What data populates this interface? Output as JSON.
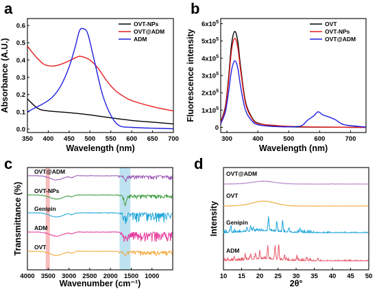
{
  "panels": {
    "a": "a",
    "b": "b",
    "c": "c",
    "d": "d"
  },
  "chart_data": [
    {
      "id": "a",
      "type": "line",
      "xlabel": "Wavelength (nm)",
      "ylabel": "Absorbance (A.U.)",
      "xlim": [
        350,
        700
      ],
      "ylim": [
        -0.02,
        0.64
      ],
      "xticks": [
        "350",
        "400",
        "450",
        "500",
        "550",
        "600",
        "650",
        "700"
      ],
      "yticks": [
        "0.0",
        "0.1",
        "0.2",
        "0.3",
        "0.4",
        "0.5",
        "0.6"
      ],
      "legend_position": "top-right",
      "colors": {
        "OVT-NPs": "#000000",
        "OVT@ADM": "#e41a1c",
        "ADM": "#1f1fe0"
      },
      "series": [
        {
          "name": "OVT-NPs",
          "x": [
            350,
            375,
            400,
            450,
            500,
            550,
            600,
            650,
            700
          ],
          "y": [
            0.175,
            0.12,
            0.105,
            0.095,
            0.082,
            0.065,
            0.05,
            0.04,
            0.03
          ]
        },
        {
          "name": "OVT@ADM",
          "x": [
            350,
            370,
            390,
            410,
            430,
            450,
            470,
            480,
            500,
            520,
            540,
            560,
            580,
            600,
            650,
            700
          ],
          "y": [
            0.48,
            0.42,
            0.375,
            0.365,
            0.375,
            0.395,
            0.418,
            0.42,
            0.4,
            0.35,
            0.28,
            0.225,
            0.19,
            0.165,
            0.13,
            0.105
          ]
        },
        {
          "name": "ADM",
          "x": [
            350,
            370,
            390,
            410,
            430,
            450,
            465,
            475,
            485,
            495,
            510,
            530,
            550,
            570,
            600,
            650,
            700
          ],
          "y": [
            0.1,
            0.125,
            0.15,
            0.185,
            0.25,
            0.36,
            0.48,
            0.57,
            0.58,
            0.55,
            0.4,
            0.2,
            0.08,
            0.02,
            0.01,
            0.005,
            0.002
          ]
        }
      ]
    },
    {
      "id": "b",
      "type": "line",
      "xlabel": "Wavelength (nm)",
      "ylabel": "Fluorescence intensity",
      "xlim": [
        280,
        750
      ],
      "ylim": [
        -30000,
        630000
      ],
      "xticks": [
        "300",
        "400",
        "500",
        "600",
        "700"
      ],
      "yticks": [
        {
          "value": 0,
          "base": "0",
          "exp": ""
        },
        {
          "value": 100000,
          "base": "1x10",
          "exp": "5"
        },
        {
          "value": 200000,
          "base": "2x10",
          "exp": "5"
        },
        {
          "value": 300000,
          "base": "3x10",
          "exp": "5"
        },
        {
          "value": 400000,
          "base": "4x10",
          "exp": "5"
        },
        {
          "value": 500000,
          "base": "5x10",
          "exp": "5"
        },
        {
          "value": 600000,
          "base": "6x10",
          "exp": "5"
        }
      ],
      "legend_position": "top-right",
      "colors": {
        "OVT": "#000000",
        "OVT-NPs": "#e41a1c",
        "OVT@ADM": "#1f1fe0"
      },
      "series": [
        {
          "name": "OVT",
          "x": [
            280,
            295,
            305,
            315,
            325,
            335,
            345,
            360,
            380,
            400,
            450,
            500,
            600,
            750
          ],
          "y": [
            30000,
            120000,
            280000,
            480000,
            555000,
            500000,
            340000,
            150000,
            60000,
            25000,
            8000,
            3000,
            1000,
            0
          ]
        },
        {
          "name": "OVT-NPs",
          "x": [
            280,
            295,
            305,
            315,
            325,
            335,
            345,
            360,
            380,
            400,
            450,
            500,
            600,
            750
          ],
          "y": [
            28000,
            110000,
            260000,
            445000,
            515000,
            465000,
            320000,
            140000,
            55000,
            22000,
            12000,
            6000,
            2000,
            0
          ]
        },
        {
          "name": "OVT@ADM",
          "x": [
            280,
            295,
            305,
            315,
            325,
            335,
            345,
            360,
            380,
            400,
            450,
            500,
            540,
            560,
            580,
            595,
            610,
            630,
            650,
            680,
            750
          ],
          "y": [
            20000,
            90000,
            200000,
            330000,
            385000,
            345000,
            230000,
            100000,
            40000,
            15000,
            5000,
            3000,
            8000,
            40000,
            65000,
            90000,
            72000,
            60000,
            45000,
            15000,
            2000
          ]
        }
      ]
    },
    {
      "id": "c",
      "type": "line",
      "xlabel": "Wavenumber (cm⁻¹)",
      "ylabel": "Transmittance (%)",
      "xlim": [
        4000,
        500
      ],
      "xticks": [
        "4000",
        "3500",
        "3000",
        "2500",
        "2000",
        "1500",
        "1000"
      ],
      "highlights": [
        {
          "from": 3560,
          "to": 3460,
          "color": "#f4a6a6"
        },
        {
          "from": 1780,
          "to": 1520,
          "color": "#a8d8ea"
        }
      ],
      "series": [
        {
          "name": "OVT@ADM",
          "color": "#9b59b6"
        },
        {
          "name": "OVT-NPs",
          "color": "#3a9a3a"
        },
        {
          "name": "Genipin",
          "color": "#1aa3d9"
        },
        {
          "name": "ADM",
          "color": "#e6399b"
        },
        {
          "name": "OVT",
          "color": "#f2a534"
        }
      ]
    },
    {
      "id": "d",
      "type": "line",
      "xlabel": "2θ°",
      "ylabel": "Intensity",
      "xlim": [
        10,
        50
      ],
      "xticks": [
        "10",
        "15",
        "20",
        "25",
        "30",
        "35",
        "40",
        "45",
        "50"
      ],
      "series": [
        {
          "name": "OVT@ADM",
          "color": "#b07cc6"
        },
        {
          "name": "OVT",
          "color": "#f2a534"
        },
        {
          "name": "Genipin",
          "color": "#1aa3d9"
        },
        {
          "name": "ADM",
          "color": "#e85a6a"
        }
      ]
    }
  ]
}
